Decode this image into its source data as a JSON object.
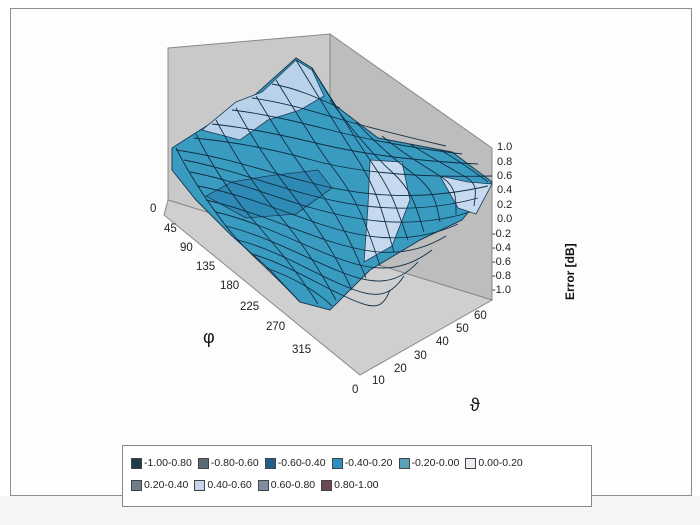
{
  "chart_data": {
    "type": "surface",
    "title": "",
    "x_axis": {
      "symbol": "φ",
      "ticks": [
        "0",
        "45",
        "90",
        "135",
        "180",
        "225",
        "270",
        "315"
      ]
    },
    "y_axis": {
      "symbol": "ϑ",
      "ticks": [
        "0",
        "10",
        "20",
        "30",
        "40",
        "50",
        "60"
      ]
    },
    "z_axis": {
      "label": "Error [dB]",
      "range": [
        -1.0,
        1.0
      ],
      "ticks": [
        "1.0",
        "0.8",
        "0.6",
        "0.4",
        "0.2",
        "0.0",
        "-0.2",
        "-0.4",
        "-0.6",
        "-0.8",
        "-1.0"
      ]
    },
    "surface_color": "#3a9bc1",
    "legend": [
      {
        "label": "-1.00-0.80",
        "color": "#1f3a4a"
      },
      {
        "label": "-0.80-0.60",
        "color": "#5c6b73"
      },
      {
        "label": "-0.60-0.40",
        "color": "#1f5f8a"
      },
      {
        "label": "-0.40-0.20",
        "color": "#2f8fbf"
      },
      {
        "label": "-0.20-0.00",
        "color": "#5aa2b8"
      },
      {
        "label": "0.00-0.20",
        "color": "#e9eef2"
      },
      {
        "label": "0.20-0.40",
        "color": "#6f7f89"
      },
      {
        "label": "0.40-0.60",
        "color": "#c6d6ea"
      },
      {
        "label": "0.60-0.80",
        "color": "#7e8ea0"
      },
      {
        "label": "0.80-1.00",
        "color": "#6b4b53"
      }
    ]
  }
}
